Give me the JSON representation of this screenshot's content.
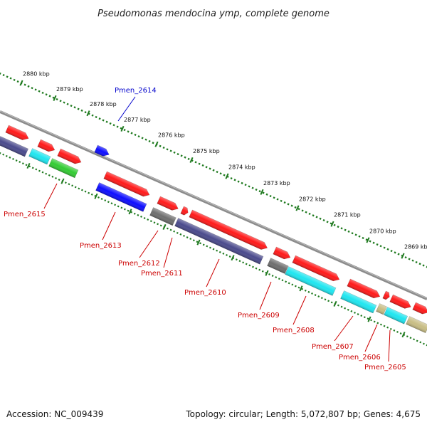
{
  "title": "Pseudomonas mendocina ymp, complete genome",
  "footer": {
    "accession": "Accession: NC_009439",
    "summary": "Topology: circular; Length: 5,072,807 bp; Genes: 4,675"
  },
  "colors": {
    "background": "#ffffff",
    "backbone": "#8c8c8c",
    "tick": "#1f7a1f",
    "label_red": "#cc0000",
    "label_blue": "#0000cc",
    "red": "#ff1a1a",
    "blue": "#0d0dff",
    "slate": "#4a4a8c",
    "cyan": "#1fe6f0",
    "green": "#33cc33",
    "gray": "#6e6e6e",
    "olive": "#c8bd84"
  },
  "scale": {
    "unit": "kbp",
    "ticks": [
      "2869 kbp",
      "2870 kbp",
      "2871 kbp",
      "2872 kbp",
      "2873 kbp",
      "2874 kbp",
      "2875 kbp",
      "2876 kbp",
      "2877 kbp",
      "2878 kbp",
      "2879 kbp",
      "2880 kbp"
    ]
  },
  "genes": [
    {
      "label": "Pmen_2614",
      "color_key": "label_blue"
    },
    {
      "label": "Pmen_2615",
      "color_key": "label_red"
    },
    {
      "label": "Pmen_2613",
      "color_key": "label_red"
    },
    {
      "label": "Pmen_2612",
      "color_key": "label_red"
    },
    {
      "label": "Pmen_2611",
      "color_key": "label_red"
    },
    {
      "label": "Pmen_2610",
      "color_key": "label_red"
    },
    {
      "label": "Pmen_2609",
      "color_key": "label_red"
    },
    {
      "label": "Pmen_2608",
      "color_key": "label_red"
    },
    {
      "label": "Pmen_2607",
      "color_key": "label_red"
    },
    {
      "label": "Pmen_2606",
      "color_key": "label_red"
    },
    {
      "label": "Pmen_2605",
      "color_key": "label_red"
    }
  ]
}
